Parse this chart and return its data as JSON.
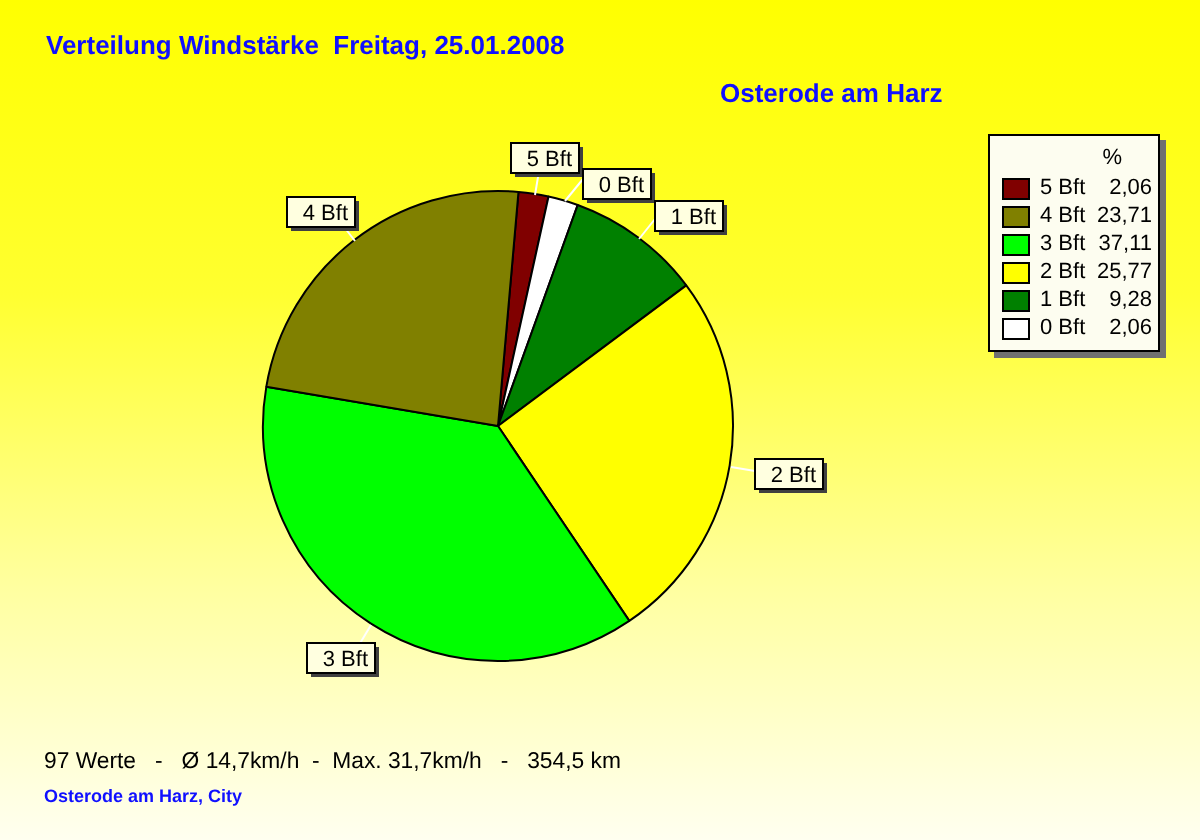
{
  "chart_data": {
    "type": "pie",
    "title": "Verteilung Windstärke  Freitag, 25.01.2008",
    "subtitle": "Osterode am Harz",
    "legend_title": "%",
    "categories": [
      "5 Bft",
      "0 Bft",
      "1 Bft",
      "2 Bft",
      "3 Bft",
      "4 Bft"
    ],
    "values": [
      2.06,
      2.06,
      9.28,
      25.77,
      37.11,
      23.71
    ],
    "value_labels": [
      "2,06",
      "2,06",
      "9,28",
      "25,77",
      "37,11",
      "23,71"
    ],
    "colors": [
      "#800000",
      "#ffffff",
      "#008000",
      "#ffff00",
      "#00ff00",
      "#808000"
    ],
    "legend": "top right",
    "annotations": [
      "97 Werte   -   Ø 14,7km/h  -  Max. 31,7km/h   -   354,5 km",
      "Osterode am Harz, City"
    ]
  }
}
